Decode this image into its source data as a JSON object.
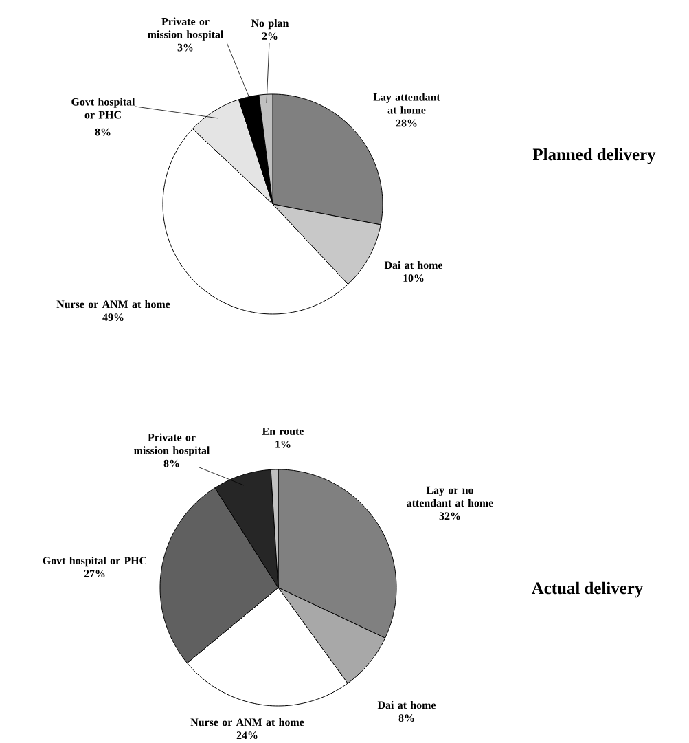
{
  "chart_data": [
    {
      "type": "pie",
      "title": "Planned delivery",
      "categories": [
        "Lay attendant at home",
        "Dai at home",
        "Nurse or ANM at home",
        "Govt hospital or PHC",
        "Private or mission hospital",
        "No plan"
      ],
      "values": [
        28,
        10,
        49,
        8,
        3,
        2
      ],
      "value_labels": [
        "28%",
        "10%",
        "49%",
        "8%",
        "3%",
        "2%"
      ],
      "colors": [
        "#808080",
        "#c8c8c8",
        "#ffffff",
        "#e4e4e4",
        "#000000",
        "#c0c0c0"
      ]
    },
    {
      "type": "pie",
      "title": "Actual delivery",
      "categories": [
        "Lay or no attendant at home",
        "Dai at home",
        "Nurse or ANM at home",
        "Govt hospital or PHC",
        "Private or mission hospital",
        "En route"
      ],
      "values": [
        32,
        8,
        24,
        27,
        8,
        1
      ],
      "value_labels": [
        "32%",
        "8%",
        "24%",
        "27%",
        "8%",
        "1%"
      ],
      "colors": [
        "#808080",
        "#a8a8a8",
        "#ffffff",
        "#606060",
        "#262626",
        "#c0c0c0"
      ]
    }
  ]
}
